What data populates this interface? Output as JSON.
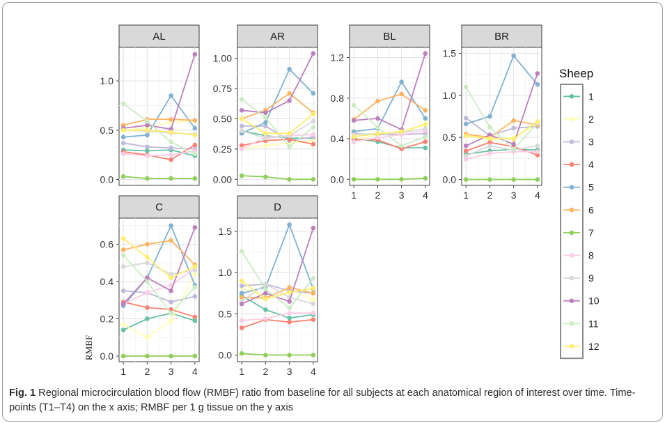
{
  "caption": {
    "label": "Fig. 1",
    "text": " Regional microcirculation blood flow (RMBF) ratio from baseline for all subjects at each anatomical region of interest over time. Time-points (T1–T4) on the x axis; RMBF per 1 g tissue on the y axis"
  },
  "chart_data": {
    "type": "line",
    "facet_layout": "facet_wrap",
    "x": [
      1,
      2,
      3,
      4
    ],
    "x_ticks": [
      "1",
      "2",
      "3",
      "4"
    ],
    "ylabel": "RMBF",
    "legend": {
      "title": "Sheep",
      "placement": "right",
      "entries": [
        "1",
        "2",
        "3",
        "4",
        "5",
        "6",
        "7",
        "8",
        "9",
        "10",
        "11",
        "12"
      ]
    },
    "colors": [
      "#66c2a5",
      "#ffffb3",
      "#bebada",
      "#fb8072",
      "#80b1d3",
      "#fdb462",
      "#8fcf5a",
      "#fccde5",
      "#d9d9d9",
      "#bc80bd",
      "#ccebc5",
      "#ffed6f"
    ],
    "panels": [
      {
        "title": "AL",
        "ylim": [
          -0.06,
          1.34
        ],
        "yticks": [
          0.0,
          0.5,
          1.0
        ],
        "ytick_labels": [
          "0.0",
          "0.5",
          "1.0"
        ],
        "show_x_ticks": false,
        "series": [
          {
            "name": "1",
            "values": [
              0.3,
              0.29,
              0.3,
              0.24
            ]
          },
          {
            "name": "2",
            "values": [
              0.49,
              0.53,
              0.58,
              0.59
            ]
          },
          {
            "name": "3",
            "values": [
              0.37,
              0.33,
              0.32,
              0.31
            ]
          },
          {
            "name": "4",
            "values": [
              0.28,
              0.25,
              0.2,
              0.35
            ]
          },
          {
            "name": "5",
            "values": [
              0.43,
              0.45,
              0.85,
              0.52
            ]
          },
          {
            "name": "6",
            "values": [
              0.55,
              0.61,
              0.61,
              0.6
            ]
          },
          {
            "name": "7",
            "values": [
              0.03,
              0.01,
              0.01,
              0.01
            ]
          },
          {
            "name": "8",
            "values": [
              0.26,
              0.24,
              0.25,
              0.29
            ]
          },
          {
            "name": "9",
            "values": [
              0.5,
              0.49,
              0.47,
              0.46
            ]
          },
          {
            "name": "10",
            "values": [
              0.52,
              0.55,
              0.51,
              1.27
            ]
          },
          {
            "name": "11",
            "values": [
              0.77,
              0.59,
              0.38,
              0.26
            ]
          },
          {
            "name": "12",
            "values": [
              0.5,
              0.5,
              0.48,
              0.45
            ]
          }
        ]
      },
      {
        "title": "AR",
        "ylim": [
          -0.05,
          1.09
        ],
        "yticks": [
          0.0,
          0.25,
          0.5,
          0.75,
          1.0
        ],
        "ytick_labels": [
          "0.00",
          "0.25",
          "0.50",
          "0.75",
          "1.00"
        ],
        "show_x_ticks": false,
        "series": [
          {
            "name": "1",
            "values": [
              0.4,
              0.36,
              0.34,
              0.34
            ]
          },
          {
            "name": "2",
            "values": [
              0.25,
              0.28,
              0.3,
              0.32
            ]
          },
          {
            "name": "3",
            "values": [
              0.44,
              0.44,
              0.32,
              0.35
            ]
          },
          {
            "name": "4",
            "values": [
              0.28,
              0.32,
              0.33,
              0.29
            ]
          },
          {
            "name": "5",
            "values": [
              0.38,
              0.47,
              0.91,
              0.71
            ]
          },
          {
            "name": "6",
            "values": [
              0.5,
              0.57,
              0.71,
              0.55
            ]
          },
          {
            "name": "7",
            "values": [
              0.03,
              0.02,
              0.0,
              0.0
            ]
          },
          {
            "name": "8",
            "values": [
              0.25,
              0.35,
              0.36,
              0.37
            ]
          },
          {
            "name": "9",
            "values": [
              0.4,
              0.34,
              0.36,
              0.48
            ]
          },
          {
            "name": "10",
            "values": [
              0.57,
              0.55,
              0.65,
              1.04
            ]
          },
          {
            "name": "11",
            "values": [
              0.66,
              0.51,
              0.27,
              0.43
            ]
          },
          {
            "name": "12",
            "values": [
              0.5,
              0.38,
              0.38,
              0.54
            ]
          }
        ]
      },
      {
        "title": "BL",
        "ylim": [
          -0.06,
          1.3
        ],
        "yticks": [
          0.0,
          0.4,
          0.8,
          1.2
        ],
        "ytick_labels": [
          "0.0",
          "0.4",
          "0.8",
          "1.2"
        ],
        "show_x_ticks": true,
        "series": [
          {
            "name": "1",
            "values": [
              0.4,
              0.37,
              0.31,
              0.31
            ]
          },
          {
            "name": "2",
            "values": [
              0.38,
              0.44,
              0.45,
              0.55
            ]
          },
          {
            "name": "3",
            "values": [
              0.45,
              0.44,
              0.44,
              0.45
            ]
          },
          {
            "name": "4",
            "values": [
              0.39,
              0.39,
              0.3,
              0.37
            ]
          },
          {
            "name": "5",
            "values": [
              0.47,
              0.5,
              0.96,
              0.6
            ]
          },
          {
            "name": "6",
            "values": [
              0.59,
              0.77,
              0.84,
              0.68
            ]
          },
          {
            "name": "7",
            "values": [
              0.0,
              0.0,
              0.0,
              0.01
            ]
          },
          {
            "name": "8",
            "values": [
              0.37,
              0.41,
              0.44,
              0.48
            ]
          },
          {
            "name": "9",
            "values": [
              0.44,
              0.45,
              0.46,
              0.5
            ]
          },
          {
            "name": "10",
            "values": [
              0.58,
              0.6,
              0.49,
              1.24
            ]
          },
          {
            "name": "11",
            "values": [
              0.73,
              0.51,
              0.33,
              0.42
            ]
          },
          {
            "name": "12",
            "values": [
              0.42,
              0.45,
              0.47,
              0.54
            ]
          }
        ]
      },
      {
        "title": "BR",
        "ylim": [
          -0.07,
          1.57
        ],
        "yticks": [
          0.0,
          0.5,
          1.0,
          1.5
        ],
        "ytick_labels": [
          "0.0",
          "0.5",
          "1.0",
          "1.5"
        ],
        "show_x_ticks": true,
        "series": [
          {
            "name": "1",
            "values": [
              0.3,
              0.34,
              0.36,
              0.35
            ]
          },
          {
            "name": "2",
            "values": [
              0.52,
              0.47,
              0.5,
              0.66
            ]
          },
          {
            "name": "3",
            "values": [
              0.73,
              0.52,
              0.61,
              0.63
            ]
          },
          {
            "name": "4",
            "values": [
              0.34,
              0.44,
              0.39,
              0.29
            ]
          },
          {
            "name": "5",
            "values": [
              0.66,
              0.75,
              1.47,
              1.13
            ]
          },
          {
            "name": "6",
            "values": [
              0.54,
              0.5,
              0.7,
              0.65
            ]
          },
          {
            "name": "7",
            "values": [
              0.0,
              0.0,
              0.0,
              0.0
            ]
          },
          {
            "name": "8",
            "values": [
              0.24,
              0.31,
              0.33,
              0.33
            ]
          },
          {
            "name": "9",
            "values": [
              0.28,
              0.4,
              0.35,
              0.4
            ]
          },
          {
            "name": "10",
            "values": [
              0.4,
              0.53,
              0.42,
              1.26
            ]
          },
          {
            "name": "11",
            "values": [
              1.1,
              0.62,
              0.36,
              0.67
            ]
          },
          {
            "name": "12",
            "values": [
              0.52,
              0.49,
              0.48,
              0.69
            ]
          }
        ]
      },
      {
        "title": "C",
        "ylim": [
          -0.03,
          0.74
        ],
        "yticks": [
          0.0,
          0.2,
          0.4,
          0.6
        ],
        "ytick_labels": [
          "0.0",
          "0.2",
          "0.4",
          "0.6"
        ],
        "show_x_ticks": true,
        "series": [
          {
            "name": "1",
            "values": [
              0.14,
              0.2,
              0.23,
              0.19
            ]
          },
          {
            "name": "2",
            "values": [
              0.17,
              0.1,
              0.19,
              0.44
            ]
          },
          {
            "name": "3",
            "values": [
              0.35,
              0.34,
              0.29,
              0.32
            ]
          },
          {
            "name": "4",
            "values": [
              0.29,
              0.26,
              0.25,
              0.21
            ]
          },
          {
            "name": "5",
            "values": [
              0.27,
              0.42,
              0.7,
              0.38
            ]
          },
          {
            "name": "6",
            "values": [
              0.57,
              0.6,
              0.62,
              0.49
            ]
          },
          {
            "name": "7",
            "values": [
              0.0,
              0.0,
              0.0,
              0.0
            ]
          },
          {
            "name": "8",
            "values": [
              0.28,
              0.34,
              0.38,
              0.47
            ]
          },
          {
            "name": "9",
            "values": [
              0.48,
              0.5,
              0.44,
              0.46
            ]
          },
          {
            "name": "10",
            "values": [
              0.28,
              0.42,
              0.35,
              0.69
            ]
          },
          {
            "name": "11",
            "values": [
              0.54,
              0.4,
              0.23,
              0.37
            ]
          },
          {
            "name": "12",
            "values": [
              0.63,
              0.53,
              0.42,
              0.48
            ]
          }
        ]
      },
      {
        "title": "D",
        "ylim": [
          -0.08,
          1.66
        ],
        "yticks": [
          0.0,
          0.5,
          1.0,
          1.5
        ],
        "ytick_labels": [
          "0.0",
          "0.5",
          "1.0",
          "1.5"
        ],
        "show_x_ticks": true,
        "series": [
          {
            "name": "1",
            "values": [
              0.72,
              0.55,
              0.45,
              0.49
            ]
          },
          {
            "name": "2",
            "values": [
              0.82,
              0.7,
              0.8,
              0.67
            ]
          },
          {
            "name": "3",
            "values": [
              0.84,
              0.86,
              0.78,
              0.75
            ]
          },
          {
            "name": "4",
            "values": [
              0.33,
              0.43,
              0.4,
              0.43
            ]
          },
          {
            "name": "5",
            "values": [
              0.75,
              0.82,
              1.58,
              0.8
            ]
          },
          {
            "name": "6",
            "values": [
              0.7,
              0.69,
              0.82,
              0.75
            ]
          },
          {
            "name": "7",
            "values": [
              0.02,
              0.0,
              0.0,
              0.0
            ]
          },
          {
            "name": "8",
            "values": [
              0.42,
              0.44,
              0.51,
              0.51
            ]
          },
          {
            "name": "9",
            "values": [
              0.65,
              0.86,
              0.7,
              0.62
            ]
          },
          {
            "name": "10",
            "values": [
              0.62,
              0.75,
              0.65,
              1.54
            ]
          },
          {
            "name": "11",
            "values": [
              1.26,
              0.8,
              0.57,
              0.93
            ]
          },
          {
            "name": "12",
            "values": [
              0.9,
              0.68,
              0.76,
              0.81
            ]
          }
        ]
      }
    ]
  }
}
